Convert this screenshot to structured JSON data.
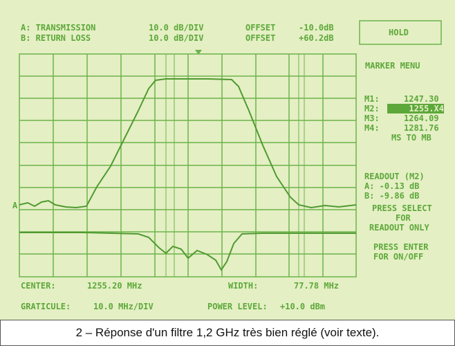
{
  "header": {
    "line_a": [
      "A: TRANSMISSION",
      "10.0 dB/DIV",
      "OFFSET",
      "-10.0dB"
    ],
    "line_b": [
      "B: RETURN LOSS",
      "10.0 dB/DIV",
      "OFFSET",
      "+60.2dB"
    ]
  },
  "side_panel": {
    "hold": "HOLD",
    "menu_title": "MARKER MENU",
    "markers": [
      [
        "M1:",
        "1247.30"
      ],
      [
        "M2:",
        "1255.X4"
      ],
      [
        "M3:",
        "1264.09"
      ],
      [
        "M4:",
        "1281.76"
      ]
    ],
    "ms_to_mb": "MS TO MB",
    "readout_title": "READOUT (M2)",
    "readout": [
      "A: -0.13 dB",
      "B: -9.86 dB"
    ],
    "select_help": [
      "PRESS SELECT",
      "FOR",
      "READOUT ONLY"
    ],
    "enter_help": [
      "PRESS ENTER",
      "FOR ON/OFF"
    ]
  },
  "trace_labels": [
    "A"
  ],
  "footer": {
    "center": [
      "CENTER:",
      "1255.20 MHz"
    ],
    "width": [
      "WIDTH:",
      "77.78 MHz"
    ],
    "graticule": [
      "GRATICULE:",
      "10.0 MHz/DIV"
    ],
    "power": [
      "POWER LEVEL:",
      "+10.0 dBm"
    ]
  },
  "caption": "2 – Réponse d'un filtre 1,2 GHz très bien réglé (voir texte)."
}
